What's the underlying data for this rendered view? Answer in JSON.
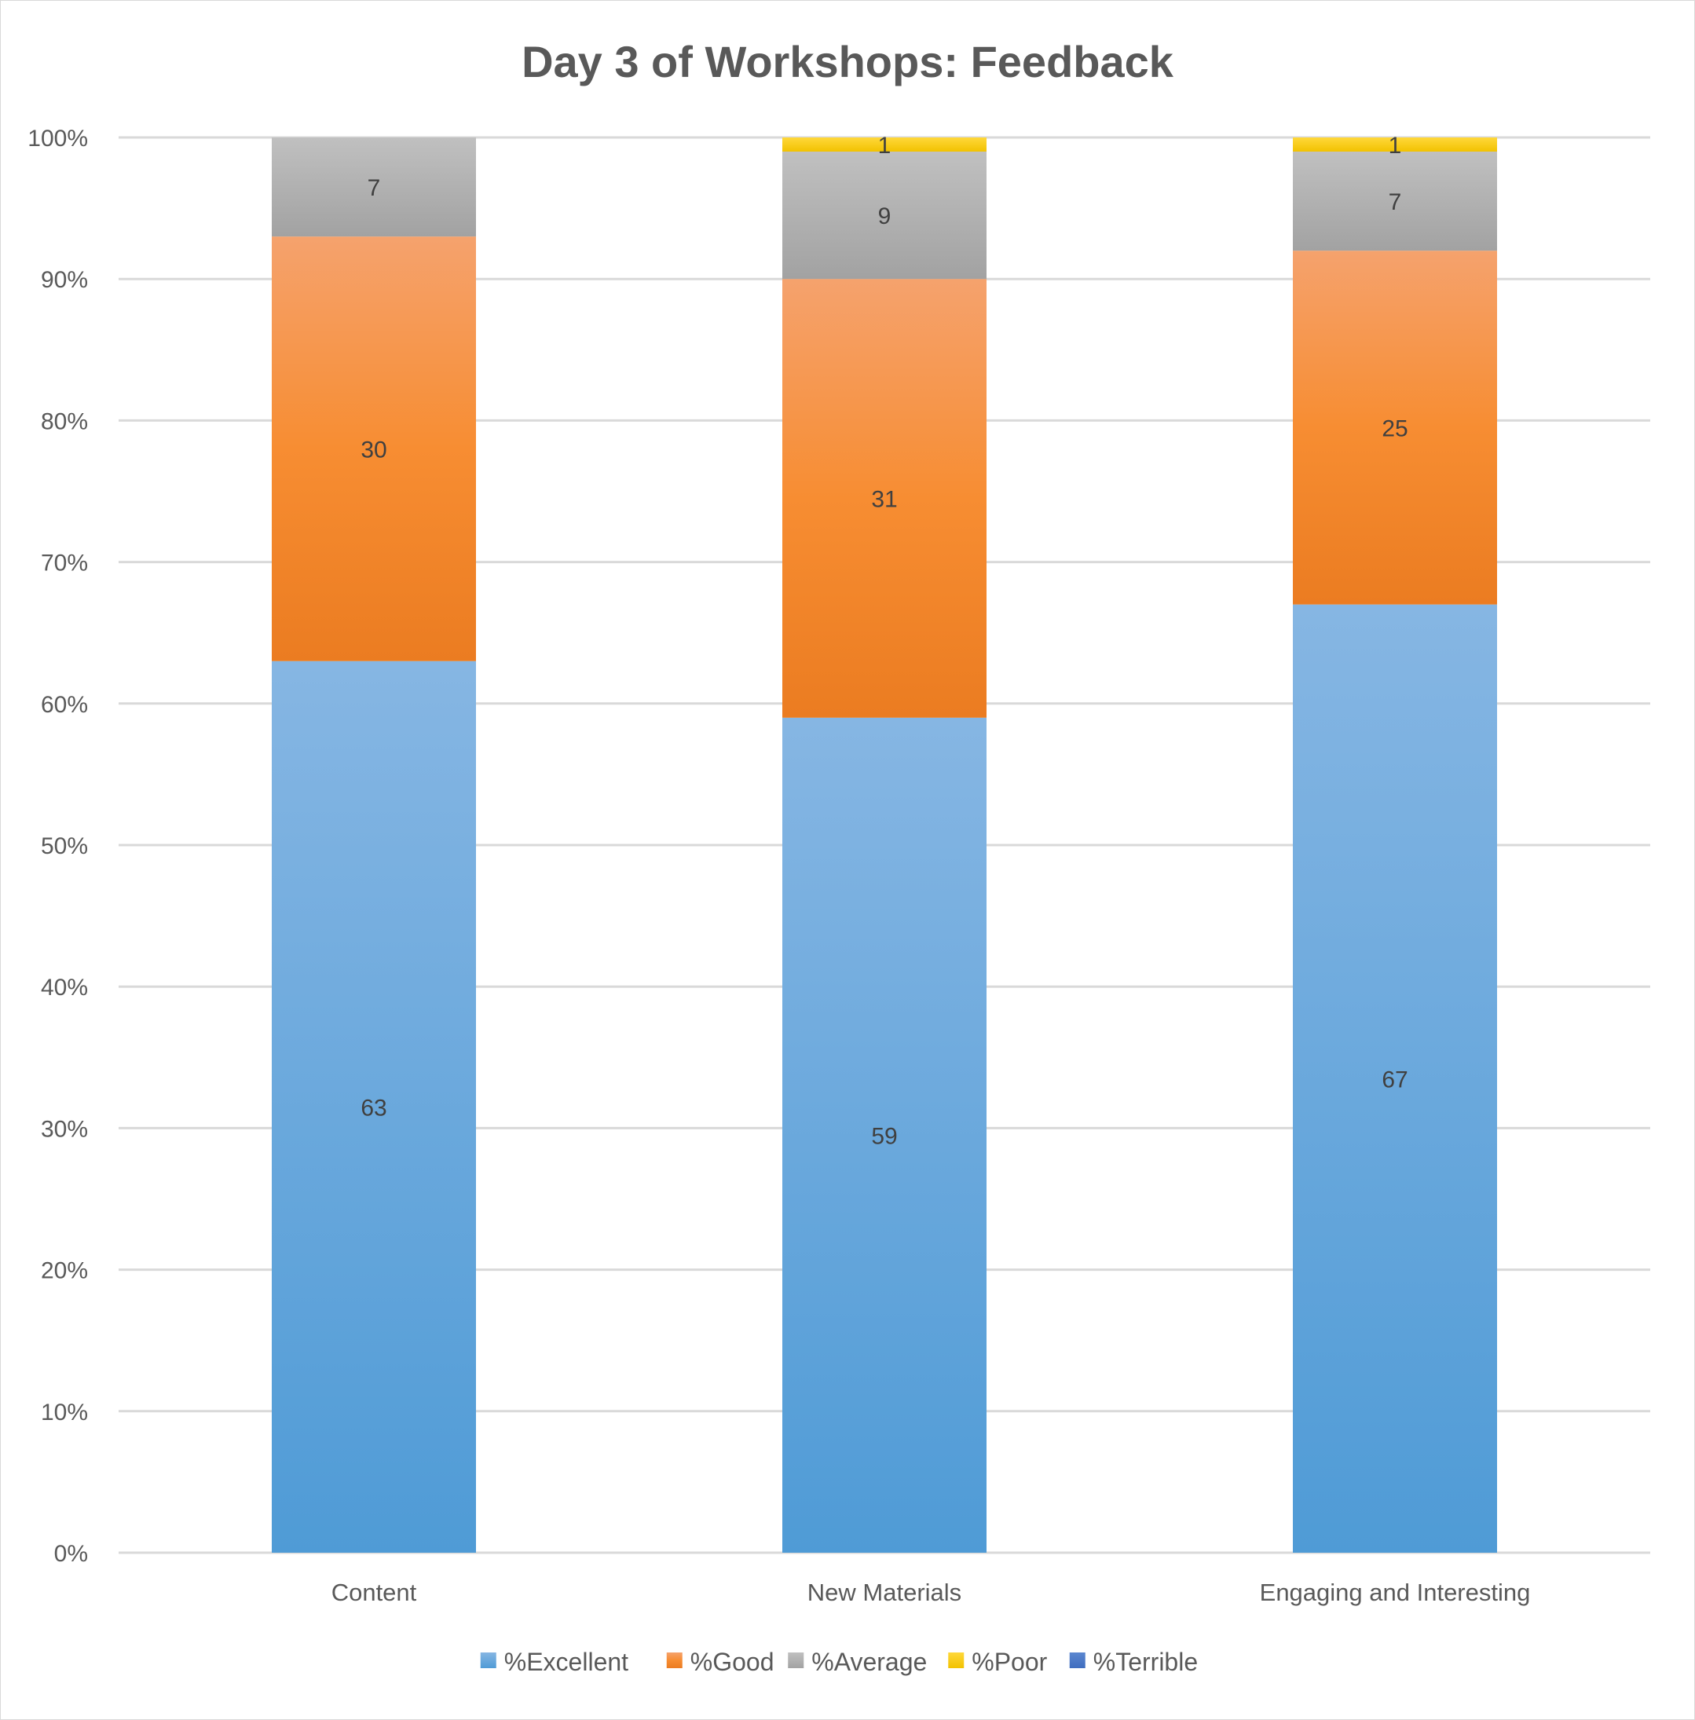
{
  "chart_data": {
    "type": "bar",
    "stacked": "percent",
    "title": "Day 3 of Workshops: Feedback",
    "xlabel": "",
    "ylabel": "",
    "ylim": [
      0,
      100
    ],
    "yticks": [
      "0%",
      "10%",
      "20%",
      "30%",
      "40%",
      "50%",
      "60%",
      "70%",
      "80%",
      "90%",
      "100%"
    ],
    "grid": true,
    "legend": "bottom",
    "categories": [
      "Content",
      "New Materials",
      "Engaging and Interesting"
    ],
    "series": [
      {
        "name": "%Excellent",
        "values": [
          63,
          59,
          67
        ],
        "color": "#5b9bd5"
      },
      {
        "name": "%Good",
        "values": [
          30,
          31,
          25
        ],
        "color": "#ed7d31"
      },
      {
        "name": "%Average",
        "values": [
          7,
          9,
          7
        ],
        "color": "#a5a5a5"
      },
      {
        "name": "%Poor",
        "values": [
          0,
          1,
          1
        ],
        "color": "#ffc000"
      },
      {
        "name": "%Terrible",
        "values": [
          0,
          0,
          0
        ],
        "color": "#4472c4"
      }
    ]
  }
}
